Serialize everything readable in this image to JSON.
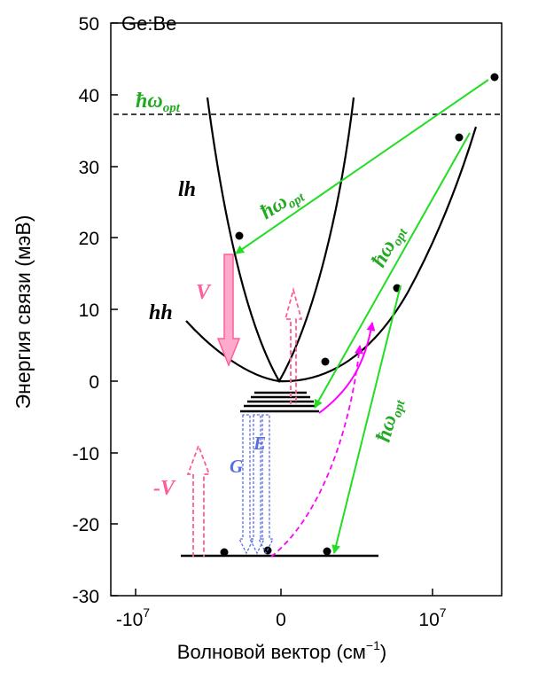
{
  "title": "Ge:Be",
  "axes": {
    "ylabel": "Энергия связи (мэВ)",
    "xlabel_main": "Волновой вектор (см",
    "xlabel_exp": "−1",
    "xlabel_close": ")",
    "yticks": [
      "50",
      "40",
      "30",
      "20",
      "10",
      "0",
      "-10",
      "-20",
      "-30"
    ],
    "xticks": [
      {
        "base": "-10",
        "exp": "7"
      },
      {
        "base": "0",
        "exp": ""
      },
      {
        "base": "10",
        "exp": "7"
      }
    ]
  },
  "labels": {
    "hw_top": "ħω",
    "hw_sub": "opt",
    "lh": "lh",
    "hh": "hh",
    "V": "V",
    "minusV": "-V",
    "G": "G",
    "E": "E"
  },
  "colors": {
    "green": "#22dd22",
    "magenta": "#ff00ff",
    "pink": "#ff5c9a",
    "blue": "#5a6ee6",
    "black": "#000000"
  }
}
